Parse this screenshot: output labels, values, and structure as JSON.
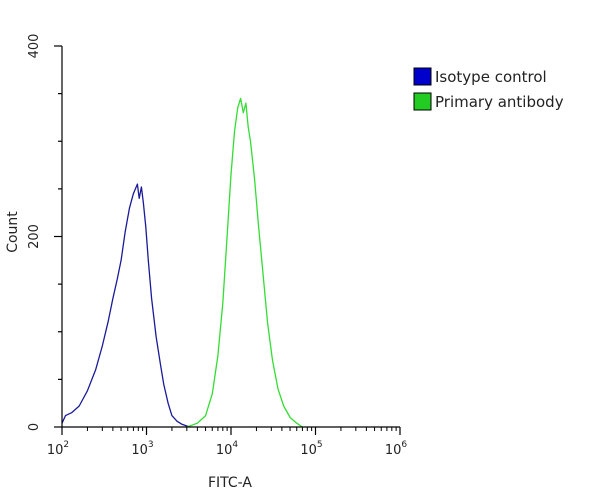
{
  "chart_data": {
    "type": "area",
    "xlabel": "FITC-A",
    "ylabel": "Count",
    "x_scale": "log",
    "xlim": [
      100,
      1000000
    ],
    "ylim": [
      0,
      400
    ],
    "x_ticks": [
      {
        "base": "10",
        "exp": "2",
        "value": 100
      },
      {
        "base": "10",
        "exp": "3",
        "value": 1000
      },
      {
        "base": "10",
        "exp": "4",
        "value": 10000
      },
      {
        "base": "10",
        "exp": "5",
        "value": 100000
      },
      {
        "base": "10",
        "exp": "6",
        "value": 1000000
      }
    ],
    "y_ticks": [
      {
        "label": "0",
        "value": 0
      },
      {
        "label": "200",
        "value": 200
      },
      {
        "label": "400",
        "value": 400
      }
    ],
    "legend_position": "top-right",
    "series": [
      {
        "name": "Isotype control",
        "color": "#1a1a99",
        "legend_color": "#0000cc",
        "x": [
          100,
          110,
          130,
          160,
          200,
          250,
          300,
          350,
          400,
          450,
          500,
          560,
          630,
          700,
          780,
          820,
          870,
          920,
          980,
          1050,
          1150,
          1300,
          1450,
          1600,
          1800,
          2000,
          2300,
          2600,
          3000,
          3300
        ],
        "y": [
          4,
          12,
          15,
          22,
          38,
          60,
          85,
          110,
          135,
          155,
          175,
          205,
          230,
          245,
          255,
          240,
          252,
          235,
          210,
          175,
          135,
          95,
          68,
          45,
          25,
          12,
          6,
          3,
          1,
          0
        ]
      },
      {
        "name": "Primary antibody",
        "color": "#33dd33",
        "legend_color": "#22cc22",
        "x": [
          3000,
          4000,
          5000,
          6000,
          7000,
          8000,
          9000,
          10000,
          11000,
          12000,
          13000,
          14000,
          15000,
          16000,
          17000,
          19000,
          21000,
          24000,
          27000,
          31000,
          36000,
          42000,
          50000,
          60000,
          70000
        ],
        "y": [
          0,
          4,
          12,
          35,
          75,
          130,
          200,
          265,
          310,
          335,
          345,
          330,
          340,
          315,
          300,
          260,
          215,
          160,
          110,
          70,
          40,
          22,
          10,
          4,
          0
        ]
      }
    ]
  }
}
